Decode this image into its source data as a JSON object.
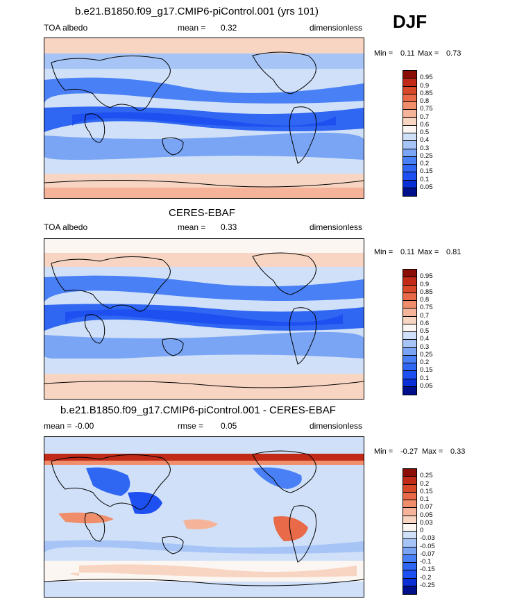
{
  "season": "DJF",
  "panels": [
    {
      "title": "b.e21.B1850.f09_g17.CMIP6-piControl.001 (yrs 101)",
      "left_label": "TOA albedo",
      "stat_label": "mean =",
      "stat_value": "0.32",
      "units": "dimensionless",
      "min_label": "Min =",
      "min_value": "0.11",
      "max_label": "Max =",
      "max_value": "0.73",
      "levels": [
        "0.05",
        "0.1",
        "0.15",
        "0.2",
        "0.25",
        "0.3",
        "0.4",
        "0.5",
        "0.6",
        "0.7",
        "0.75",
        "0.8",
        "0.85",
        "0.9",
        "0.95"
      ],
      "colors": [
        "#000f8a",
        "#0a2fd6",
        "#1e4ff0",
        "#2f66f2",
        "#4a80f5",
        "#7aa5f5",
        "#a6c4f6",
        "#cfe0f8",
        "#fbf6f2",
        "#f8d5c2",
        "#f5b49a",
        "#f08d6a",
        "#e86a48",
        "#d8492a",
        "#c02a16",
        "#8a0e06"
      ]
    },
    {
      "title": "CERES-EBAF",
      "left_label": "TOA albedo",
      "stat_label": "mean =",
      "stat_value": "0.33",
      "units": "dimensionless",
      "min_label": "Min =",
      "min_value": "0.11",
      "max_label": "Max =",
      "max_value": "0.81",
      "levels": [
        "0.05",
        "0.1",
        "0.15",
        "0.2",
        "0.25",
        "0.3",
        "0.4",
        "0.5",
        "0.6",
        "0.7",
        "0.75",
        "0.8",
        "0.85",
        "0.9",
        "0.95"
      ],
      "colors": [
        "#000f8a",
        "#0a2fd6",
        "#1e4ff0",
        "#2f66f2",
        "#4a80f5",
        "#7aa5f5",
        "#a6c4f6",
        "#cfe0f8",
        "#fbf6f2",
        "#f8d5c2",
        "#f5b49a",
        "#f08d6a",
        "#e86a48",
        "#d8492a",
        "#c02a16",
        "#8a0e06"
      ]
    },
    {
      "title": "b.e21.B1850.f09_g17.CMIP6-piControl.001 - CERES-EBAF",
      "left_label": "mean =",
      "left_value": "-0.00",
      "stat_label": "rmse =",
      "stat_value": "0.05",
      "units": "dimensionless",
      "min_label": "Min =",
      "min_value": "-0.27",
      "max_label": "Max =",
      "max_value": "0.33",
      "levels": [
        "-0.25",
        "-0.2",
        "-0.15",
        "-0.1",
        "-0.07",
        "-0.05",
        "-0.03",
        "0",
        "0.03",
        "0.05",
        "0.07",
        "0.1",
        "0.15",
        "0.2",
        "0.25"
      ],
      "colors": [
        "#000f8a",
        "#0a2fd6",
        "#1e4ff0",
        "#2f66f2",
        "#4a80f5",
        "#7aa5f5",
        "#a6c4f6",
        "#cfe0f8",
        "#fbf6f2",
        "#f8d5c2",
        "#f5b49a",
        "#f08d6a",
        "#e86a48",
        "#d8492a",
        "#c02a16",
        "#8a0e06"
      ]
    }
  ]
}
